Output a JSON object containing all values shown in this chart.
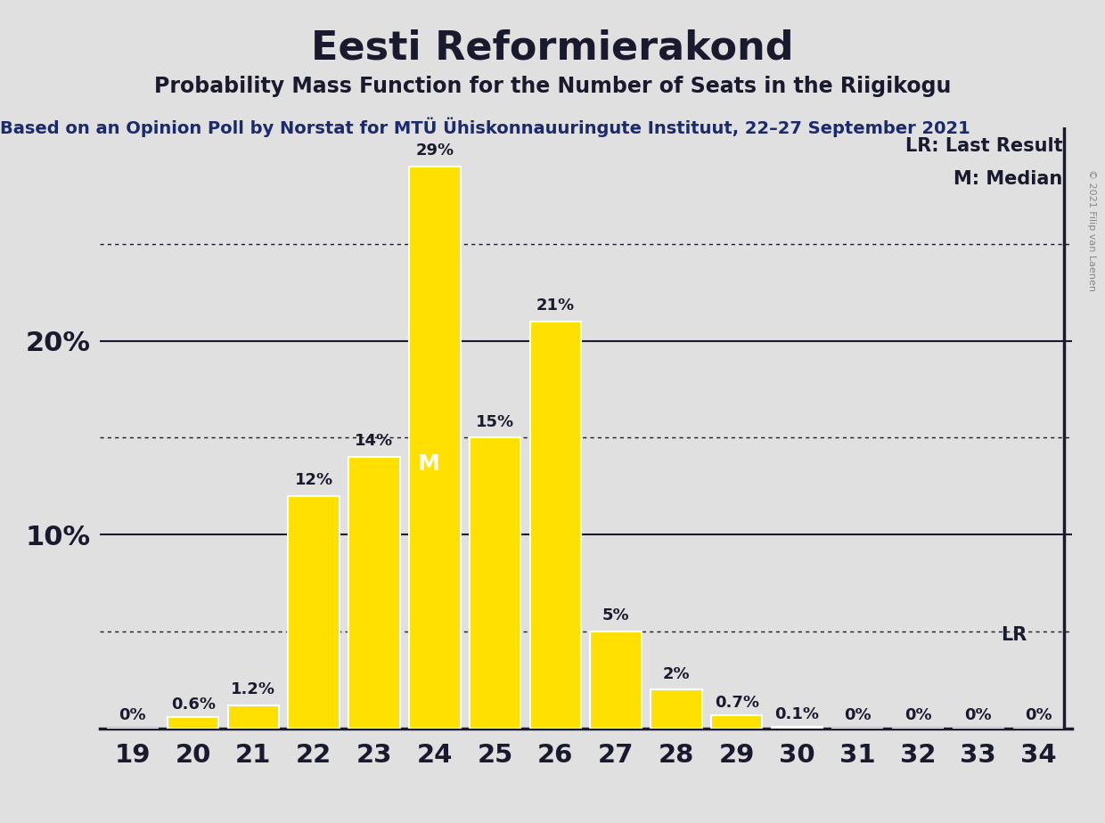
{
  "title": "Eesti Reformierakond",
  "subtitle": "Probability Mass Function for the Number of Seats in the Riigikogu",
  "source_line": "Based on an Opinion Poll by Norstat for MTÜ Ühiskonnauuringute Instituut, 22–27 September 2021",
  "copyright": "© 2021 Filip van Laenen",
  "categories": [
    19,
    20,
    21,
    22,
    23,
    24,
    25,
    26,
    27,
    28,
    29,
    30,
    31,
    32,
    33,
    34
  ],
  "values": [
    0.0,
    0.6,
    1.2,
    12.0,
    14.0,
    29.0,
    15.0,
    21.0,
    5.0,
    2.0,
    0.7,
    0.1,
    0.0,
    0.0,
    0.0,
    0.0
  ],
  "labels": [
    "0%",
    "0.6%",
    "1.2%",
    "12%",
    "14%",
    "29%",
    "15%",
    "21%",
    "5%",
    "2%",
    "0.7%",
    "0.1%",
    "0%",
    "0%",
    "0%",
    "0%"
  ],
  "bar_color": "#FFE000",
  "background_color": "#E0E0E0",
  "plot_bg_color": "#E0E0E0",
  "title_color": "#1a1a2e",
  "text_color": "#1a1a2e",
  "source_color": "#1a2a6c",
  "ylim": [
    0,
    31
  ],
  "major_yticks": [
    10,
    20
  ],
  "dotted_yticks": [
    5,
    15,
    25
  ],
  "median_seat": 24,
  "lr_seat": 34,
  "legend_lr": "LR: Last Result",
  "legend_m": "M: Median",
  "title_fontsize": 32,
  "subtitle_fontsize": 17,
  "source_fontsize": 14,
  "tick_fontsize": 21,
  "label_fontsize": 13,
  "ytick_fontsize": 22,
  "legend_fontsize": 15
}
